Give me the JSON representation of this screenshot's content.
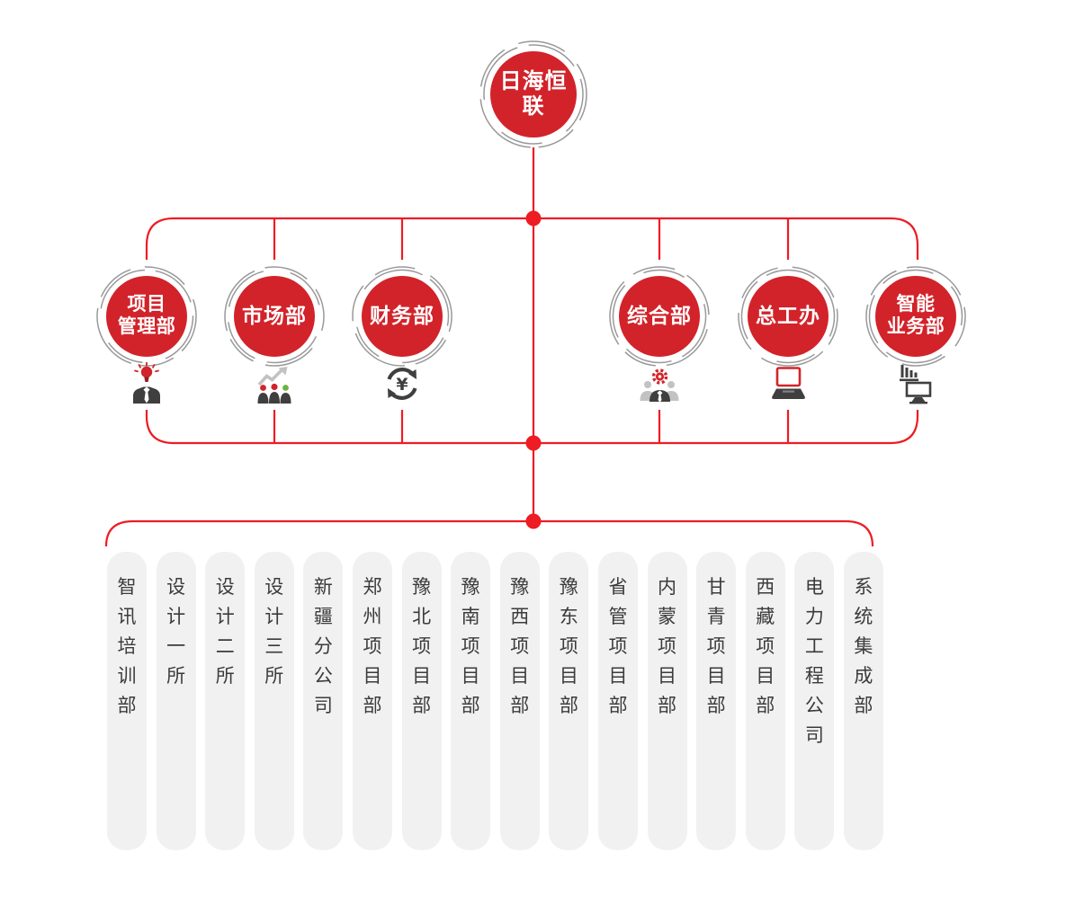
{
  "org_chart": {
    "root": {
      "label": "日海恒联"
    },
    "departments": [
      {
        "label": "项目\n管理部",
        "icon": "person-idea-icon"
      },
      {
        "label": "市场部",
        "icon": "people-growth-icon"
      },
      {
        "label": "财务部",
        "icon": "yuan-cycle-icon"
      },
      {
        "label": "综合部",
        "icon": "team-gear-icon"
      },
      {
        "label": "总工办",
        "icon": "laptop-icon"
      },
      {
        "label": "智能\n业务部",
        "icon": "monitor-stats-icon"
      }
    ],
    "units": [
      "智讯培训部",
      "设计一所",
      "设计二所",
      "设计三所",
      "新疆分公司",
      "郑州项目部",
      "豫北项目部",
      "豫南项目部",
      "豫西项目部",
      "豫东项目部",
      "省管项目部",
      "内蒙项目部",
      "甘青项目部",
      "西藏项目部",
      "电力工程公司",
      "系统集成部"
    ]
  },
  "colors": {
    "brand_red": "#d2232a",
    "line_red": "#ee1c23",
    "ring_gray": "#999999",
    "unit_bg": "#f1f1f1",
    "unit_text": "#3b3b3b",
    "icon_dark": "#3f3f3f",
    "icon_gray": "#c2c2c2",
    "icon_green": "#6db33f"
  }
}
